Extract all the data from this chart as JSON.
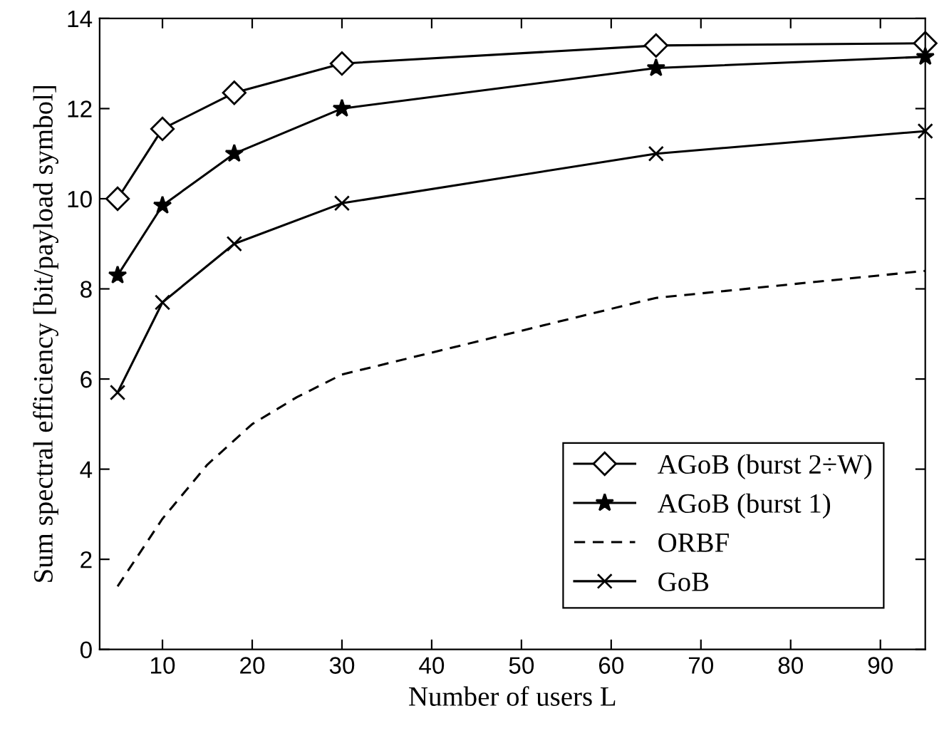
{
  "chart_data": {
    "type": "line",
    "xlabel": "Number of users L",
    "ylabel": "Sum spectral efficiency [bit/payload symbol]",
    "xlim": [
      3,
      95
    ],
    "ylim": [
      0,
      14
    ],
    "xticks": [
      10,
      20,
      30,
      40,
      50,
      60,
      70,
      80,
      90
    ],
    "yticks": [
      0,
      2,
      4,
      6,
      8,
      10,
      12,
      14
    ],
    "grid": false,
    "legend": "bottom right",
    "series": [
      {
        "name": "AGoB (burst 2÷W)",
        "color": "#000000",
        "marker": "diamond",
        "line_style": "solid",
        "x": [
          5,
          10,
          18,
          30,
          65,
          95
        ],
        "values": [
          10.0,
          11.55,
          12.35,
          13.0,
          13.4,
          13.45
        ]
      },
      {
        "name": "AGoB (burst 1)",
        "color": "#000000",
        "marker": "star",
        "line_style": "solid",
        "x": [
          5,
          10,
          18,
          30,
          65,
          95
        ],
        "values": [
          8.3,
          9.85,
          11.0,
          12.0,
          12.9,
          13.15
        ]
      },
      {
        "name": "ORBF",
        "color": "#000000",
        "marker": "none",
        "line_style": "dashed",
        "x": [
          5,
          10,
          15,
          20,
          25,
          30,
          65,
          95
        ],
        "values": [
          1.4,
          2.9,
          4.1,
          5.0,
          5.6,
          6.1,
          7.8,
          8.4
        ]
      },
      {
        "name": "GoB",
        "color": "#000000",
        "marker": "cross",
        "line_style": "solid",
        "x": [
          5,
          10,
          18,
          30,
          65,
          95
        ],
        "values": [
          5.7,
          7.7,
          9.0,
          9.9,
          11.0,
          11.5
        ]
      }
    ]
  }
}
